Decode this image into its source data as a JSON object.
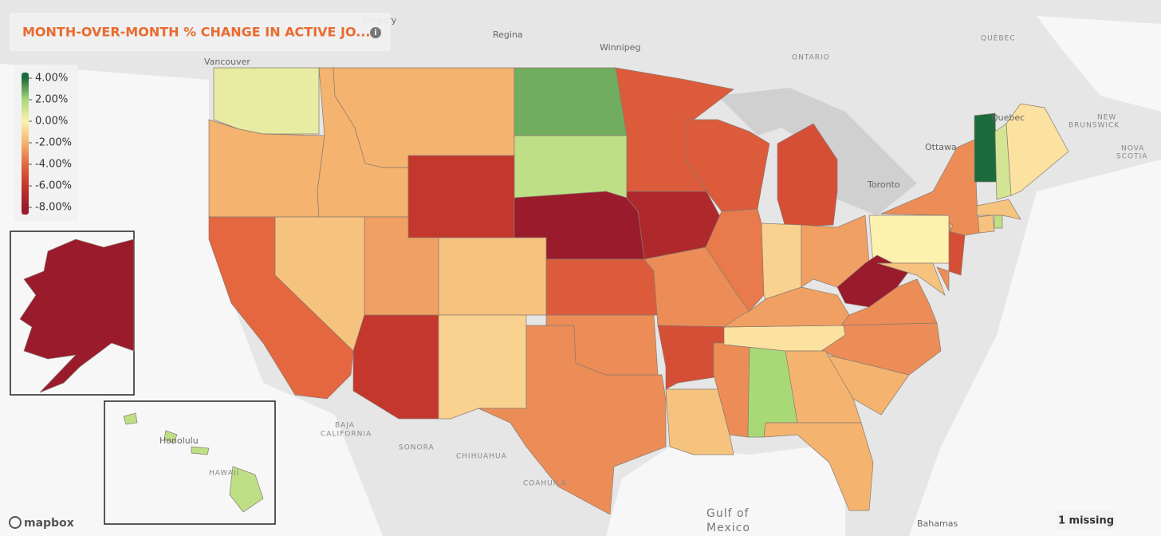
{
  "title": "MONTH-OVER-MONTH % CHANGE IN ACTIVE JO...",
  "legend": {
    "ticks": [
      {
        "value": 4,
        "label": "4.00%"
      },
      {
        "value": 2,
        "label": "2.00%"
      },
      {
        "value": 0,
        "label": "0.00%"
      },
      {
        "value": -2,
        "label": "-2.00%"
      },
      {
        "value": -4,
        "label": "-4.00%"
      },
      {
        "value": -6,
        "label": "-6.00%"
      },
      {
        "value": -8,
        "label": "-8.00%"
      }
    ],
    "colors": [
      "#1c6b3c",
      "#a9d977",
      "#fdf1b0",
      "#f4b36e",
      "#e4673f",
      "#c3372c",
      "#9a1b2b"
    ]
  },
  "map": {
    "values": [
      0.5,
      -2,
      -2,
      -2,
      2.8,
      1.5,
      -6,
      -8,
      -1.5,
      -2.5,
      -1.5,
      -4,
      -6,
      -1,
      -3,
      -3,
      -4.5,
      -4.5,
      -4.5,
      -7,
      -3,
      -5,
      -1.5,
      -3,
      2,
      -0.5,
      -2.5,
      -3.5,
      -5,
      -1,
      -2.5,
      0,
      -8,
      -3,
      -3,
      -2,
      -2,
      -2,
      -1.5,
      -3,
      -5,
      -1.5,
      -3,
      -1.5,
      1.5,
      -2,
      4,
      1,
      -0.5,
      -8,
      1.5
    ]
  },
  "places": [
    "Calgary",
    "Regina",
    "Winnipeg",
    "Vancouver",
    "ONTARIO",
    "QUÉBEC",
    "Quebec",
    "Ottawa",
    "Toronto",
    "NEW",
    "BRUNSWICK",
    "NOVA",
    "SCOTIA",
    "SONORA",
    "CHIHUAHUA",
    "COAHUILA",
    "BAJA",
    "CALIFORNIA",
    "Gulf of",
    "Mexico",
    "Bahamas",
    "Honolulu",
    "HAWAII"
  ],
  "missing": "1 missing",
  "attribution": "mapbox"
}
